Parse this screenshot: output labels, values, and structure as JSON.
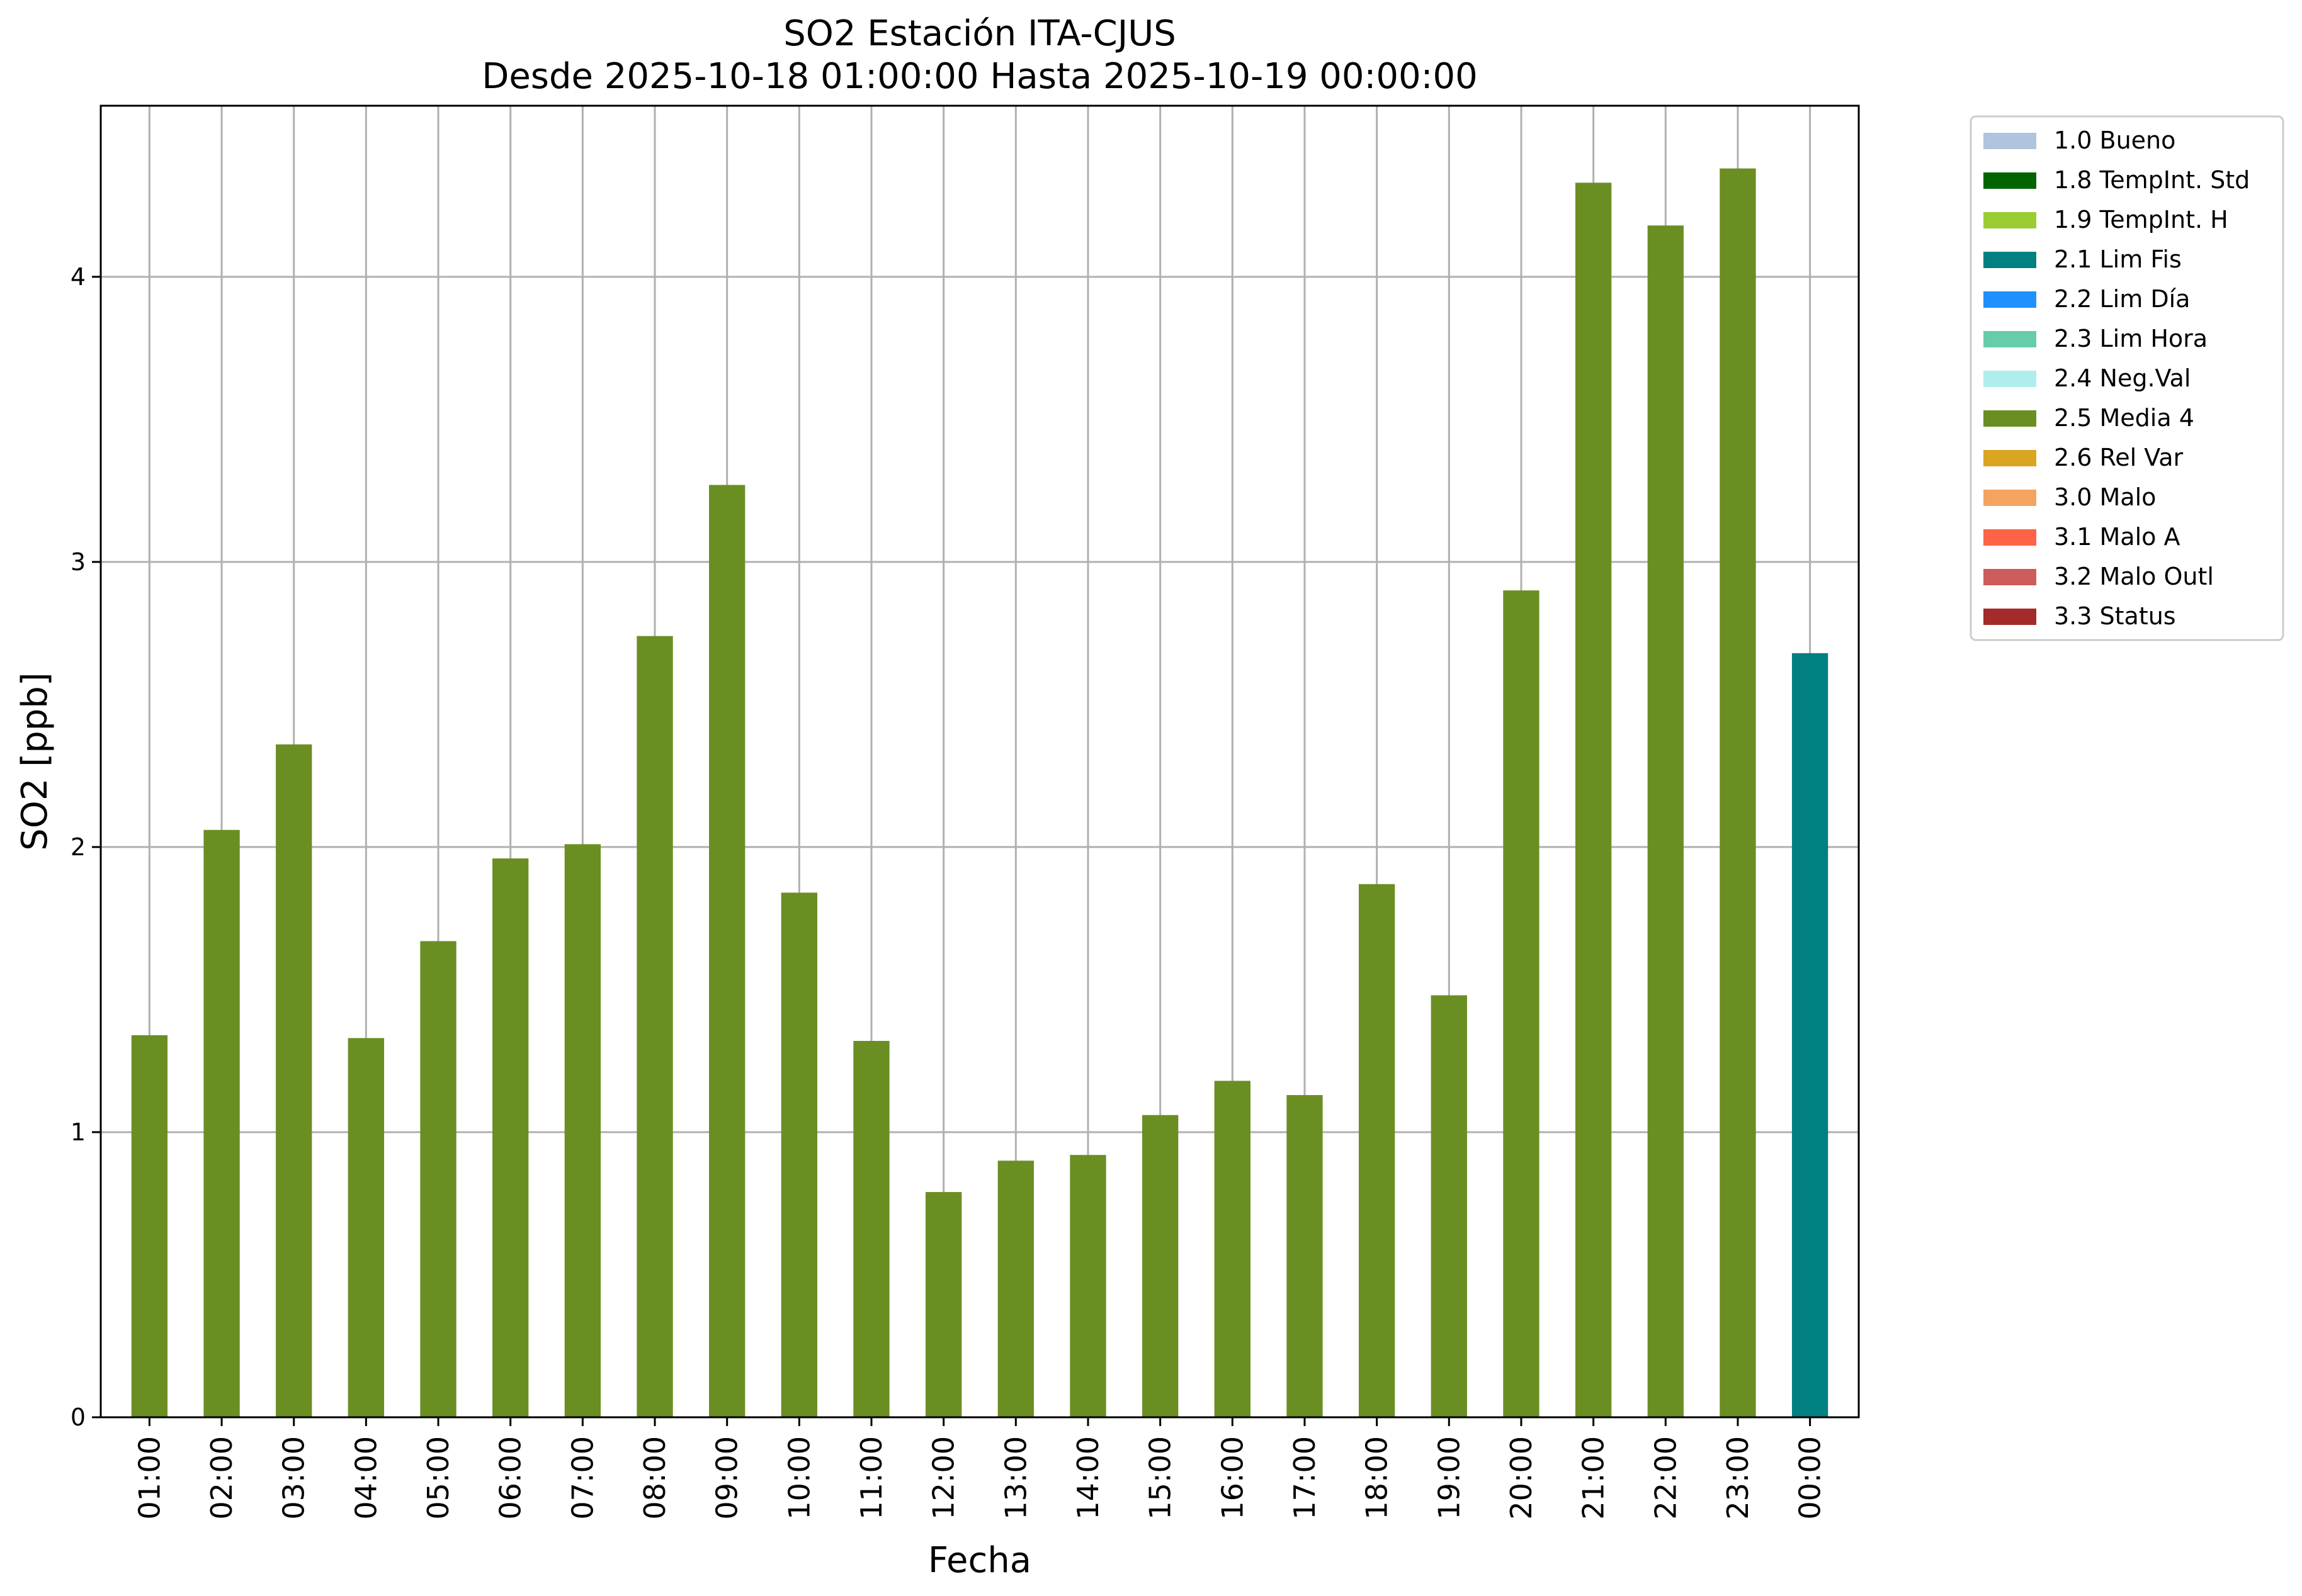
{
  "chart_data": {
    "type": "bar",
    "title": "SO2 Estación ITA-CJUS",
    "subtitle": "Desde 2025-10-18 01:00:00 Hasta 2025-10-19 00:00:00",
    "xlabel": "Fecha",
    "ylabel": "SO2 [ppb]",
    "ylim": [
      0,
      4.6
    ],
    "yticks": [
      "0",
      "1",
      "2",
      "3",
      "4"
    ],
    "grid": true,
    "legend_position": "outside-right",
    "categories": [
      "01:00",
      "02:00",
      "03:00",
      "04:00",
      "05:00",
      "06:00",
      "07:00",
      "08:00",
      "09:00",
      "10:00",
      "11:00",
      "12:00",
      "13:00",
      "14:00",
      "15:00",
      "16:00",
      "17:00",
      "18:00",
      "19:00",
      "20:00",
      "21:00",
      "22:00",
      "23:00",
      "00:00"
    ],
    "values": [
      1.34,
      2.06,
      2.36,
      1.33,
      1.67,
      1.96,
      2.01,
      2.74,
      3.27,
      1.84,
      1.32,
      0.79,
      0.9,
      0.92,
      1.06,
      1.18,
      1.13,
      1.87,
      1.48,
      2.9,
      4.33,
      4.18,
      4.38,
      2.68
    ],
    "flags": [
      "2.5 Media 4",
      "2.5 Media 4",
      "2.5 Media 4",
      "2.5 Media 4",
      "2.5 Media 4",
      "2.5 Media 4",
      "2.5 Media 4",
      "2.5 Media 4",
      "2.5 Media 4",
      "2.5 Media 4",
      "2.5 Media 4",
      "2.5 Media 4",
      "2.5 Media 4",
      "2.5 Media 4",
      "2.5 Media 4",
      "2.5 Media 4",
      "2.5 Media 4",
      "2.5 Media 4",
      "2.5 Media 4",
      "2.5 Media 4",
      "2.5 Media 4",
      "2.5 Media 4",
      "2.5 Media 4",
      "2.1 Lim Fis"
    ],
    "legend": [
      {
        "label": "1.0 Bueno",
        "color": "#b0c4de"
      },
      {
        "label": "1.8 TempInt. Std",
        "color": "#006400"
      },
      {
        "label": "1.9 TempInt. H",
        "color": "#9acd32"
      },
      {
        "label": "2.1 Lim Fis",
        "color": "#008080"
      },
      {
        "label": "2.2 Lim Día",
        "color": "#1e90ff"
      },
      {
        "label": "2.3 Lim Hora",
        "color": "#66cdaa"
      },
      {
        "label": "2.4 Neg.Val",
        "color": "#afeeee"
      },
      {
        "label": "2.5 Media 4",
        "color": "#6b8e23"
      },
      {
        "label": "2.6 Rel Var",
        "color": "#daa520"
      },
      {
        "label": "3.0 Malo",
        "color": "#f4a460"
      },
      {
        "label": "3.1 Malo A",
        "color": "#ff6347"
      },
      {
        "label": "3.2 Malo Outl",
        "color": "#cd5c5c"
      },
      {
        "label": "3.3 Status",
        "color": "#a52a2a"
      }
    ]
  }
}
